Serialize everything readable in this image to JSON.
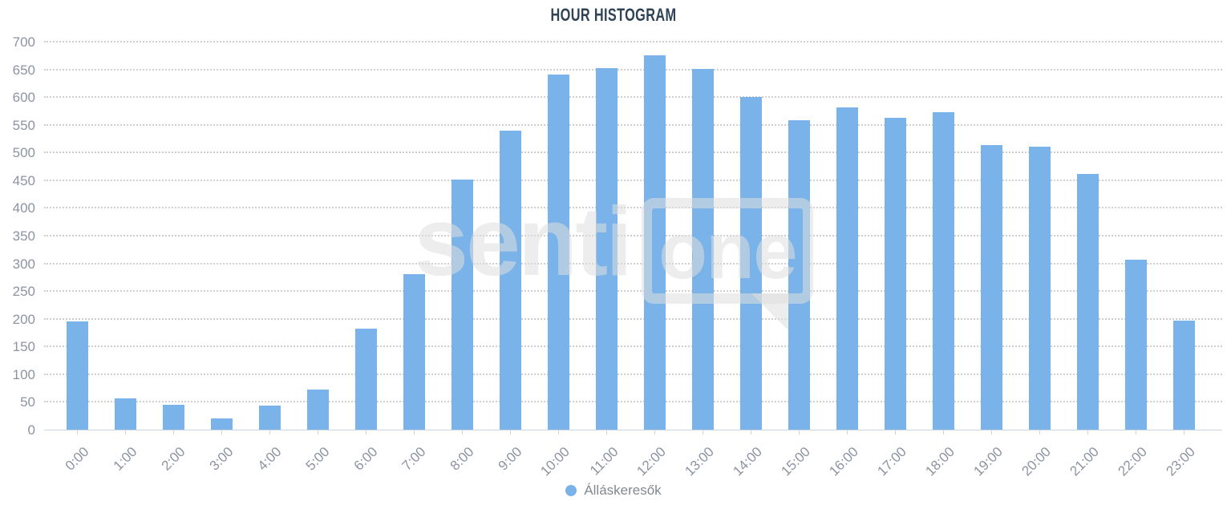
{
  "title": "HOUR HISTOGRAM",
  "legend": {
    "label": "Álláskeresők"
  },
  "watermark": {
    "part1": "senti",
    "part2": "one"
  },
  "colors": {
    "bar": "#7ab3e9",
    "title_text": "#2f4256",
    "axis_label_text": "#8c93a3",
    "grid_dotted": "#cfcfcf",
    "axis_line": "#cdd3da",
    "legend_text": "#83888f",
    "watermark_gray": "#efefef",
    "background": "#ffffff"
  },
  "chart_data": {
    "type": "bar",
    "title": "HOUR HISTOGRAM",
    "xlabel": "",
    "ylabel": "",
    "categories": [
      "0:00",
      "1:00",
      "2:00",
      "3:00",
      "4:00",
      "5:00",
      "6:00",
      "7:00",
      "8:00",
      "9:00",
      "10:00",
      "11:00",
      "12:00",
      "13:00",
      "14:00",
      "15:00",
      "16:00",
      "17:00",
      "18:00",
      "19:00",
      "20:00",
      "21:00",
      "22:00",
      "23:00"
    ],
    "series": [
      {
        "name": "Álláskeresők",
        "values": [
          195,
          57,
          45,
          20,
          43,
          72,
          182,
          280,
          451,
          540,
          640,
          652,
          675,
          651,
          600,
          558,
          582,
          563,
          573,
          513,
          510,
          462,
          307,
          196
        ]
      }
    ],
    "ylim": [
      0,
      700
    ],
    "yticks": [
      0,
      50,
      100,
      150,
      200,
      250,
      300,
      350,
      400,
      450,
      500,
      550,
      600,
      650,
      700
    ],
    "grid": "horizontal-dotted",
    "x_label_rotation": -45,
    "legend_position": "bottom-center"
  }
}
